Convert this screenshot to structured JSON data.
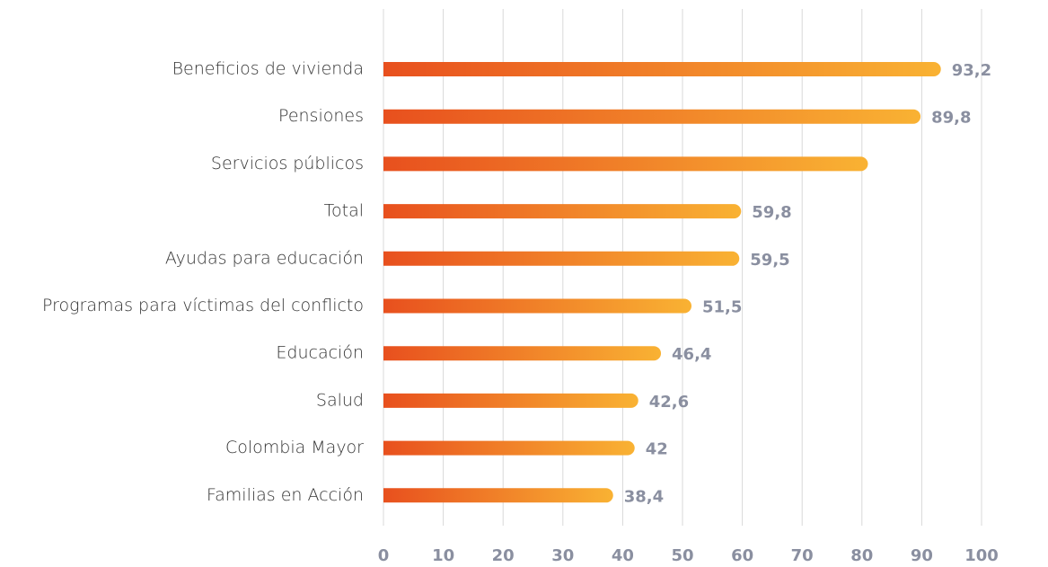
{
  "chart_data": {
    "type": "bar",
    "orientation": "horizontal",
    "categories": [
      "Beneficios de vivienda",
      "Pensiones",
      "Servicios públicos",
      "Total",
      "Ayudas para educación",
      "Programas para víctimas del conflicto",
      "Educación",
      "Salud",
      "Colombia Mayor",
      "Familias en Acción"
    ],
    "values": [
      93.2,
      89.8,
      81,
      59.8,
      59.5,
      51.5,
      46.4,
      42.6,
      42,
      38.4
    ],
    "value_labels": [
      "93,2",
      "89,8",
      null,
      "59,8",
      "59,5",
      "51,5",
      "46,4",
      "42,6",
      "42",
      "38,4"
    ],
    "color": [
      "#e8501e",
      "#f9b233"
    ],
    "xlim": [
      0,
      100
    ],
    "xticks": [
      0,
      10,
      20,
      30,
      40,
      50,
      60,
      70,
      80,
      90,
      100
    ],
    "grid": true
  }
}
